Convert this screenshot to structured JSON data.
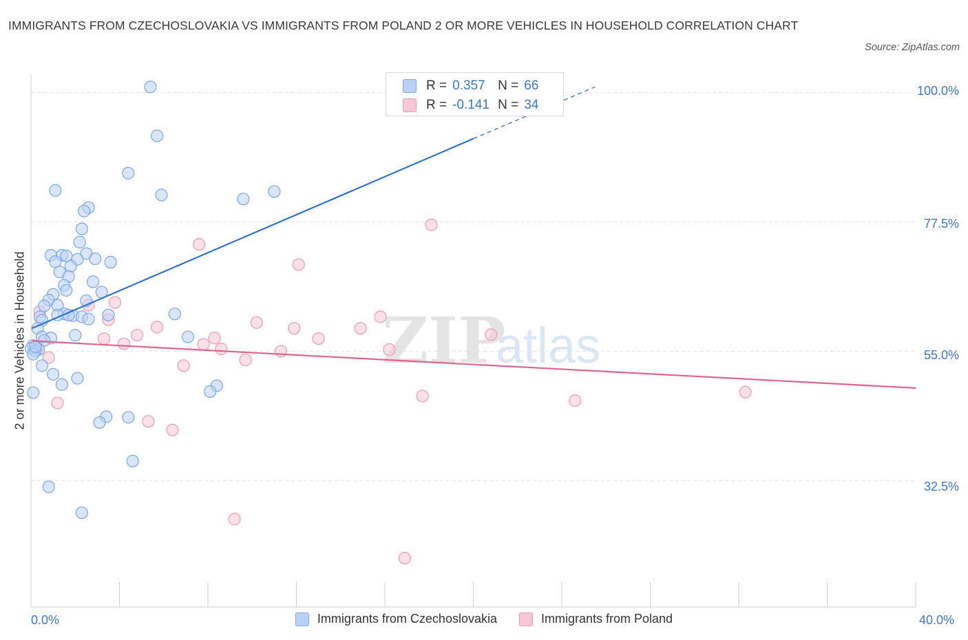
{
  "title": "IMMIGRANTS FROM CZECHOSLOVAKIA VS IMMIGRANTS FROM POLAND 2 OR MORE VEHICLES IN HOUSEHOLD CORRELATION CHART",
  "source": "Source: ZipAtlas.com",
  "watermark": {
    "zip": "ZIP",
    "atlas": "atlas"
  },
  "legend_top": [
    {
      "r_label": "R =",
      "r_value": "0.357",
      "n_label": "N =",
      "n_value": "66"
    },
    {
      "r_label": "R =",
      "r_value": "-0.141",
      "n_label": "N =",
      "n_value": "34"
    }
  ],
  "colors": {
    "blue_fill": "#b9d1f5",
    "blue_stroke": "#7ba7e6",
    "blue_line": "#2e72d2",
    "pink_fill": "#f8c6d5",
    "pink_stroke": "#ee9ab3",
    "pink_line": "#e0628e",
    "tick_text": "#3a78d4",
    "grid": "#e2e2e2"
  },
  "chart_data": {
    "type": "scatter",
    "title": "IMMIGRANTS FROM CZECHOSLOVAKIA VS IMMIGRANTS FROM POLAND 2 OR MORE VEHICLES IN HOUSEHOLD CORRELATION CHART",
    "xlabel": "",
    "ylabel": "2 or more Vehicles in Household",
    "xlim": [
      0,
      40
    ],
    "ylim": [
      10.5,
      102
    ],
    "x_tick_labels": [
      "0.0%",
      "40.0%"
    ],
    "y_ticks": [
      32.5,
      55.0,
      77.5,
      100.0
    ],
    "y_tick_labels": [
      "32.5%",
      "55.0%",
      "77.5%",
      "100.0%"
    ],
    "grid": true,
    "legend_position": "bottom-center",
    "series": [
      {
        "name": "Immigrants from Czechoslovakia",
        "color": "#7ba7e6",
        "R": 0.357,
        "N": 66,
        "trend": {
          "x": [
            0.05,
            20.0
          ],
          "y": [
            59.0,
            92.0
          ],
          "dashed_to": [
            25.5,
            101.0
          ]
        },
        "points": [
          [
            5.4,
            101.0
          ],
          [
            5.7,
            92.5
          ],
          [
            4.4,
            86.0
          ],
          [
            1.1,
            83.0
          ],
          [
            5.9,
            82.2
          ],
          [
            9.6,
            81.5
          ],
          [
            11.0,
            82.8
          ],
          [
            2.6,
            80.0
          ],
          [
            2.4,
            79.4
          ],
          [
            2.3,
            76.3
          ],
          [
            3.6,
            70.5
          ],
          [
            0.9,
            71.7
          ],
          [
            1.4,
            71.7
          ],
          [
            1.6,
            71.6
          ],
          [
            2.5,
            72.0
          ],
          [
            1.1,
            70.6
          ],
          [
            2.9,
            71.1
          ],
          [
            2.1,
            71.0
          ],
          [
            2.2,
            74.0
          ],
          [
            1.3,
            68.8
          ],
          [
            1.8,
            69.8
          ],
          [
            1.7,
            68.0
          ],
          [
            1.5,
            66.5
          ],
          [
            2.8,
            67.1
          ],
          [
            1.6,
            65.6
          ],
          [
            1.0,
            64.9
          ],
          [
            3.2,
            65.3
          ],
          [
            0.8,
            63.9
          ],
          [
            0.6,
            62.9
          ],
          [
            1.2,
            63.0
          ],
          [
            2.5,
            63.8
          ],
          [
            1.5,
            61.5
          ],
          [
            1.9,
            61.2
          ],
          [
            0.4,
            61.0
          ],
          [
            1.2,
            61.3
          ],
          [
            2.3,
            61.0
          ],
          [
            2.6,
            60.6
          ],
          [
            3.5,
            61.3
          ],
          [
            6.5,
            61.5
          ],
          [
            0.5,
            60.4
          ],
          [
            0.3,
            59.0
          ],
          [
            0.5,
            57.5
          ],
          [
            0.9,
            57.3
          ],
          [
            2.0,
            57.8
          ],
          [
            7.1,
            57.5
          ],
          [
            0.6,
            56.9
          ],
          [
            0.1,
            56.0
          ],
          [
            0.35,
            55.3
          ],
          [
            0.0,
            55.5
          ],
          [
            0.2,
            55.0
          ],
          [
            0.1,
            54.5
          ],
          [
            0.5,
            52.5
          ],
          [
            1.0,
            51.0
          ],
          [
            2.1,
            50.3
          ],
          [
            1.4,
            49.2
          ],
          [
            8.4,
            49.0
          ],
          [
            8.1,
            48.0
          ],
          [
            0.1,
            47.8
          ],
          [
            3.4,
            43.6
          ],
          [
            4.4,
            43.5
          ],
          [
            3.1,
            42.6
          ],
          [
            4.6,
            35.9
          ],
          [
            0.8,
            31.4
          ],
          [
            2.3,
            26.9
          ],
          [
            1.7,
            61.3
          ],
          [
            0.2,
            55.8
          ]
        ]
      },
      {
        "name": "Immigrants from Poland",
        "color": "#ee9ab3",
        "R": -0.141,
        "N": 34,
        "trend": {
          "x": [
            0.05,
            40.0
          ],
          "y": [
            56.8,
            48.6
          ]
        },
        "points": [
          [
            18.1,
            77.0
          ],
          [
            7.6,
            73.6
          ],
          [
            12.1,
            70.1
          ],
          [
            3.8,
            63.5
          ],
          [
            2.6,
            63.0
          ],
          [
            15.8,
            61.0
          ],
          [
            10.2,
            60.0
          ],
          [
            5.7,
            59.2
          ],
          [
            11.9,
            59.0
          ],
          [
            14.9,
            59.0
          ],
          [
            20.8,
            57.9
          ],
          [
            4.8,
            57.8
          ],
          [
            8.3,
            57.3
          ],
          [
            13.0,
            57.2
          ],
          [
            3.3,
            57.2
          ],
          [
            4.2,
            56.3
          ],
          [
            7.8,
            56.2
          ],
          [
            0.3,
            55.7
          ],
          [
            8.6,
            55.4
          ],
          [
            11.3,
            55.0
          ],
          [
            16.2,
            55.3
          ],
          [
            0.8,
            53.9
          ],
          [
            9.7,
            53.5
          ],
          [
            6.9,
            52.5
          ],
          [
            0.4,
            61.9
          ],
          [
            17.7,
            47.2
          ],
          [
            24.6,
            46.4
          ],
          [
            32.3,
            47.9
          ],
          [
            1.2,
            46.0
          ],
          [
            5.3,
            42.8
          ],
          [
            6.4,
            41.3
          ],
          [
            9.2,
            25.8
          ],
          [
            16.9,
            19.0
          ],
          [
            3.5,
            60.5
          ]
        ]
      }
    ]
  },
  "legend_bottom": [
    {
      "label": "Immigrants from Czechoslovakia"
    },
    {
      "label": "Immigrants from Poland"
    }
  ],
  "x_tick_left": "0.0%",
  "x_tick_right": "40.0%",
  "y_ticks": [
    "100.0%",
    "77.5%",
    "55.0%",
    "32.5%"
  ]
}
